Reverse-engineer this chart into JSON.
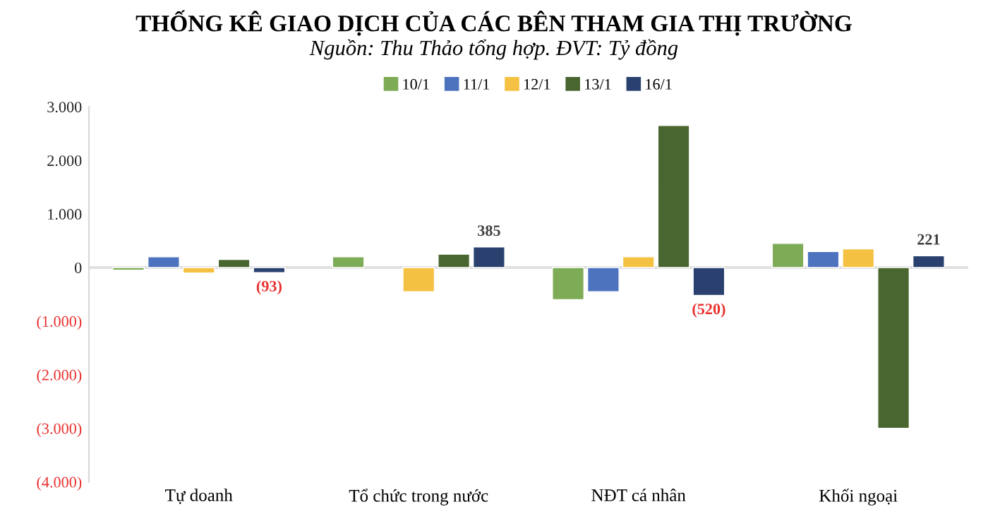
{
  "chart_data": {
    "type": "bar",
    "title": "THỐNG KÊ GIAO DỊCH CỦA CÁC BÊN THAM GIA THỊ TRƯỜNG",
    "subtitle": "Nguồn: Thu Thảo tổng hợp. ĐVT: Tỷ đồng",
    "categories": [
      "Tự doanh",
      "Tổ chức trong nước",
      "NĐT cá nhân",
      "Khối ngoại"
    ],
    "series": [
      {
        "name": "10/1",
        "color": "#7eab55",
        "values": [
          -50,
          200,
          -600,
          450
        ]
      },
      {
        "name": "11/1",
        "color": "#4e73be",
        "values": [
          200,
          null,
          -450,
          300
        ]
      },
      {
        "name": "12/1",
        "color": "#f4c142",
        "values": [
          -100,
          -450,
          200,
          350
        ]
      },
      {
        "name": "13/1",
        "color": "#4a6630",
        "values": [
          150,
          250,
          2650,
          -3000
        ]
      },
      {
        "name": "16/1",
        "color": "#2a4170",
        "values": [
          -93,
          385,
          -520,
          221
        ],
        "value_labels": [
          "(93)",
          "385",
          "(520)",
          "221"
        ]
      }
    ],
    "ylim": [
      -4000,
      3000
    ],
    "yticks": [
      {
        "value": 3000,
        "label": "3.000"
      },
      {
        "value": 2000,
        "label": "2.000"
      },
      {
        "value": 1000,
        "label": "1.000"
      },
      0,
      {
        "value": -1000,
        "label": "(1.000)"
      },
      {
        "value": -2000,
        "label": "(2.000)"
      },
      {
        "value": -3000,
        "label": "(3.000)"
      },
      {
        "value": -4000,
        "label": "(4.000)"
      }
    ],
    "ref_lines": [
      {
        "axis": "y",
        "value": 0,
        "color": "#e0e0e0"
      }
    ],
    "grid": false,
    "legend": "top"
  }
}
